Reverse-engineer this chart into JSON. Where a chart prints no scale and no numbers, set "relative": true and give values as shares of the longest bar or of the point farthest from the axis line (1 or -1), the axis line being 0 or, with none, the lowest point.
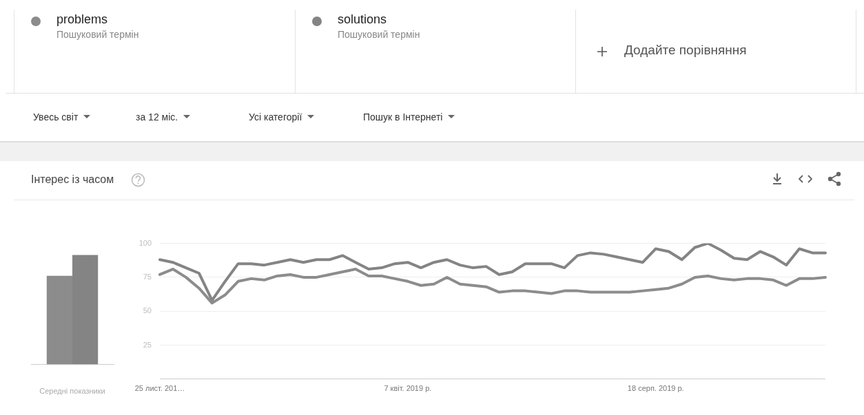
{
  "chart_data": [
    {
      "type": "bar",
      "title": "Інтерес із часом",
      "relative": true,
      "xlabel": "Середні показники",
      "categories": [
        null
      ],
      "series": [
        {
          "color": "#8c8c8c",
          "values": [
            0.81
          ]
        },
        {
          "color": "#848484",
          "values": [
            1
          ]
        }
      ]
    },
    {
      "type": "line",
      "legend": "top",
      "grid": "y",
      "ylim": [
        0,
        100
      ],
      "yticks": [
        {
          "value": 0,
          "label": null
        },
        25,
        50,
        75,
        100
      ],
      "categories": [
        "25 лист. 201…",
        null,
        null,
        null,
        null,
        null,
        null,
        null,
        null,
        null,
        null,
        null,
        null,
        null,
        null,
        null,
        null,
        null,
        null,
        "7 квіт. 2019 р.",
        null,
        null,
        null,
        null,
        null,
        null,
        null,
        null,
        null,
        null,
        null,
        null,
        null,
        null,
        null,
        null,
        null,
        null,
        "18 серп. 2019 р.",
        null,
        null,
        null,
        null,
        null,
        null,
        null,
        null,
        null,
        null,
        null,
        null,
        null
      ],
      "series": [
        {
          "name": "problems",
          "color": "#8c8c8c",
          "values": [
            77,
            81,
            75,
            67,
            56,
            62,
            72,
            74,
            73,
            76,
            77,
            75,
            75,
            77,
            79,
            81,
            76,
            76,
            74,
            72,
            69,
            70,
            75,
            70,
            69,
            68,
            64,
            65,
            65,
            64,
            63,
            65,
            65,
            64,
            64,
            64,
            64,
            65,
            66,
            67,
            70,
            75,
            76,
            74,
            73,
            74,
            74,
            73,
            69,
            74,
            74,
            75
          ]
        },
        {
          "name": "solutions",
          "color": "#848484",
          "values": [
            88,
            86,
            82,
            78,
            58,
            72,
            85,
            85,
            84,
            86,
            88,
            86,
            88,
            88,
            91,
            86,
            81,
            82,
            85,
            86,
            82,
            86,
            88,
            84,
            82,
            83,
            77,
            79,
            85,
            85,
            85,
            82,
            91,
            93,
            92,
            90,
            88,
            86,
            96,
            94,
            88,
            97,
            100,
            95,
            89,
            88,
            94,
            90,
            84,
            96,
            93,
            93
          ]
        }
      ],
      "annotations": [
        "Пошуковий термін",
        "Пошуковий термін",
        "Додайте порівняння",
        "Увесь світ",
        "за 12 міс.",
        "Усі категорії",
        "Пошук в Інтернеті"
      ]
    }
  ]
}
